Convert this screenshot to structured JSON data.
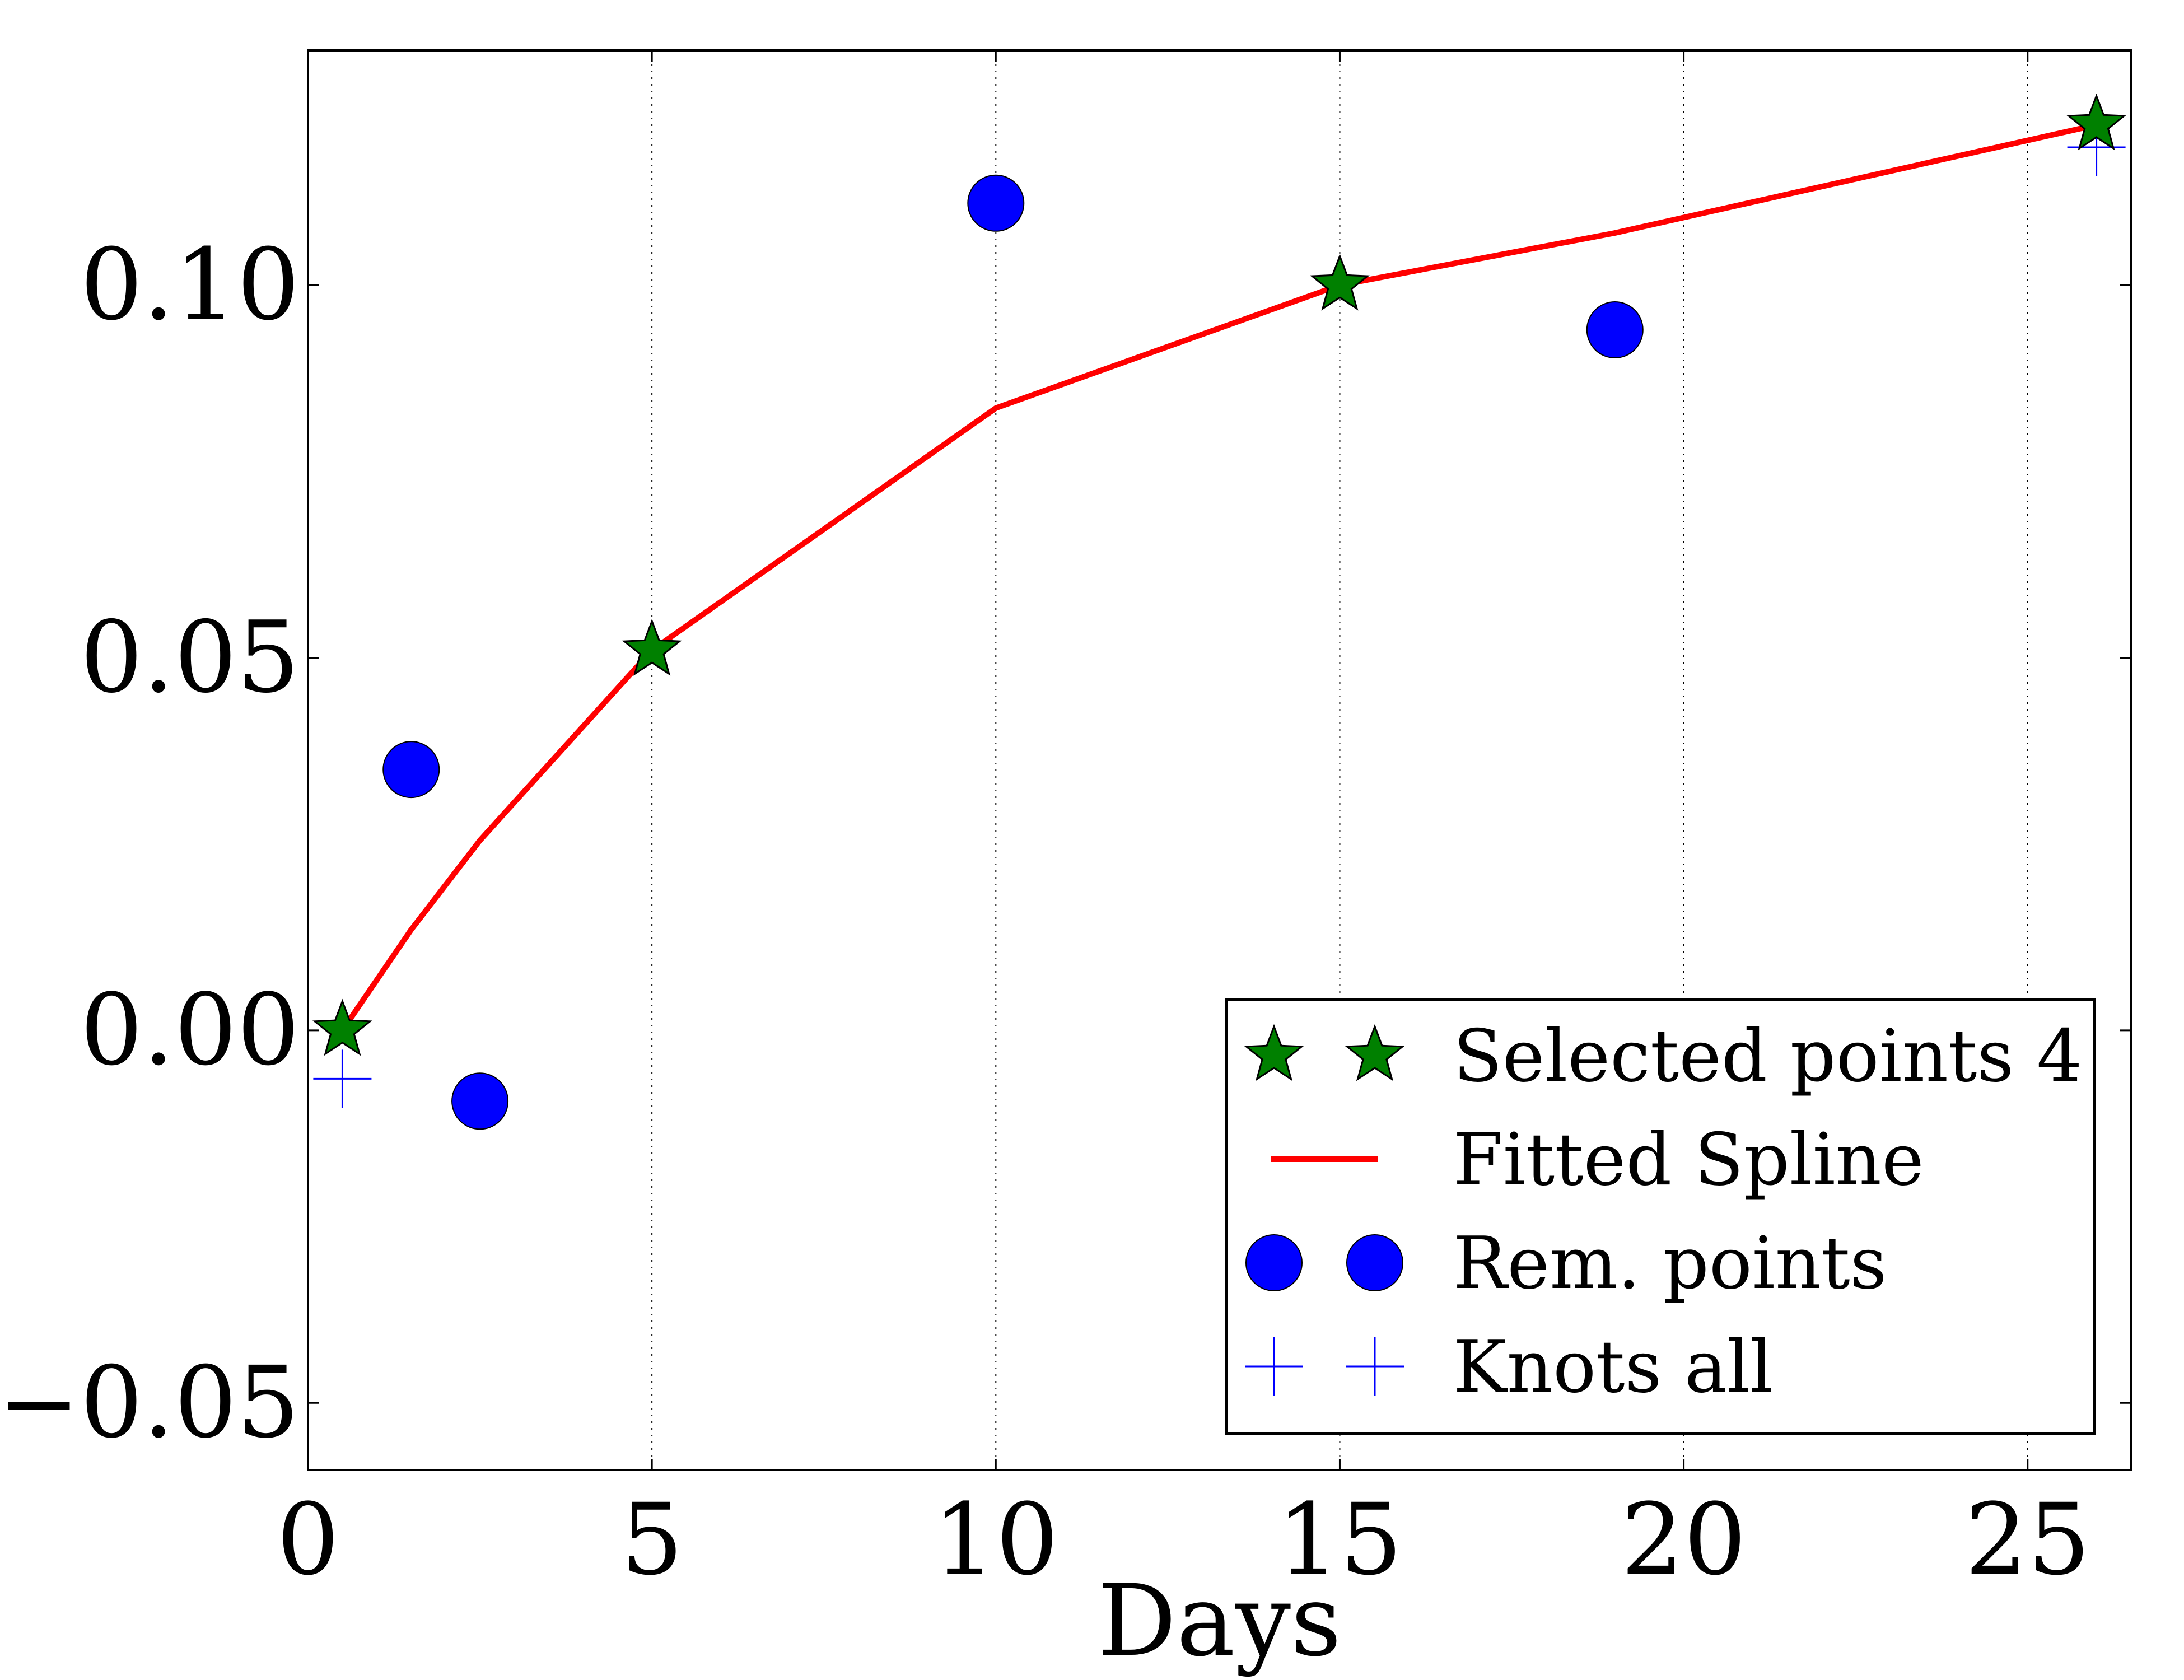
{
  "chart_data": {
    "type": "scatter",
    "xlabel": "Days",
    "ylabel": "",
    "xlim": [
      0,
      26.5
    ],
    "ylim": [
      -0.059,
      0.1315
    ],
    "x_ticks": [
      0,
      5,
      10,
      15,
      20,
      25
    ],
    "x_tick_labels": [
      "0",
      "5",
      "10",
      "15",
      "20",
      "25"
    ],
    "y_ticks": [
      -0.05,
      0.0,
      0.05,
      0.1
    ],
    "y_tick_labels": [
      "−0.05",
      "0.00",
      "0.05",
      "0.10"
    ],
    "grid": "vertical dotted at x ticks",
    "legend_position": "lower right",
    "series": [
      {
        "name": "Selected points 4",
        "marker": "star",
        "color": "#008000",
        "points": [
          [
            0.5,
            0.0
          ],
          [
            5,
            0.051
          ],
          [
            15,
            0.1
          ],
          [
            26,
            0.1215
          ]
        ]
      },
      {
        "name": "Fitted Spline",
        "marker": "line",
        "color": "#ff0000",
        "points": [
          [
            0.5,
            0.0
          ],
          [
            1.5,
            0.0135
          ],
          [
            2.5,
            0.0255
          ],
          [
            5,
            0.051
          ],
          [
            10,
            0.0835
          ],
          [
            15,
            0.1
          ],
          [
            19,
            0.107
          ],
          [
            26,
            0.1215
          ]
        ]
      },
      {
        "name": "Rem. points",
        "marker": "circle",
        "color": "#0000ff",
        "points": [
          [
            1.5,
            0.035
          ],
          [
            2.5,
            -0.0095
          ],
          [
            10,
            0.111
          ],
          [
            19,
            0.094
          ]
        ]
      },
      {
        "name": "Knots all",
        "marker": "plus",
        "color": "#0000ff",
        "points": [
          [
            0.5,
            -0.0065
          ],
          [
            26,
            0.1185
          ]
        ]
      }
    ]
  }
}
